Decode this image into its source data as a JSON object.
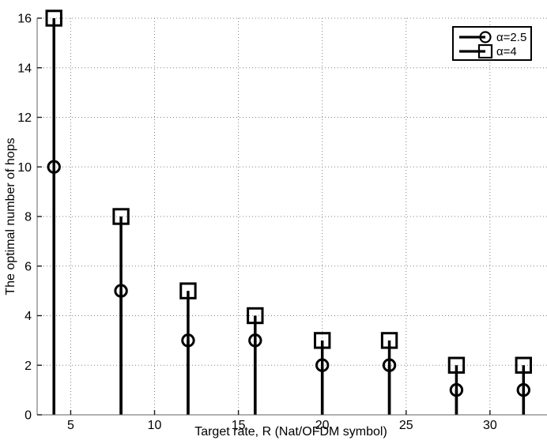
{
  "figure": {
    "background": "#ffffff"
  },
  "chart_data": {
    "type": "stem",
    "title": "",
    "xlabel": "Target rate, R (Nat/OFDM symbol)",
    "ylabel": "The optimal number of hops",
    "x": [
      4,
      8,
      12,
      16,
      20,
      24,
      28,
      32
    ],
    "series": [
      {
        "name": "α=2.5",
        "marker": "circle",
        "values": [
          10,
          5,
          3,
          3,
          2,
          2,
          1,
          1
        ]
      },
      {
        "name": "α=4",
        "marker": "square",
        "values": [
          16,
          8,
          5,
          4,
          3,
          3,
          2,
          2
        ]
      }
    ],
    "xticks": [
      5,
      10,
      15,
      20,
      25,
      30
    ],
    "yticks": [
      0,
      2,
      4,
      6,
      8,
      10,
      12,
      14,
      16
    ],
    "xlim": [
      3,
      33.4
    ],
    "ylim": [
      0,
      16
    ],
    "grid": true,
    "grid_style": "dotted",
    "legend": {
      "position": "northeast",
      "entries": [
        "α=2.5",
        "α=4"
      ]
    },
    "colors": {
      "stem": "#000000",
      "marker": "#000000",
      "grid": "#808080",
      "axis": "#606060",
      "tick": "#1a1a1a",
      "text": "#000000"
    }
  }
}
